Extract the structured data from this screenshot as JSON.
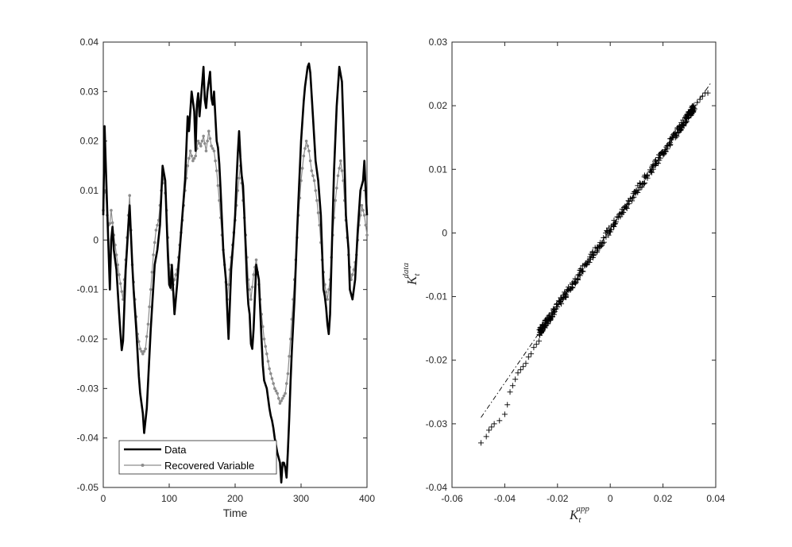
{
  "chart_data": [
    {
      "type": "line",
      "xlabel": "Time",
      "ylabel": "",
      "xlim": [
        0,
        400
      ],
      "ylim": [
        -0.05,
        0.04
      ],
      "x_ticks": [
        "0",
        "100",
        "200",
        "300",
        "400"
      ],
      "y_ticks": [
        "-0.05",
        "-0.04",
        "-0.03",
        "-0.02",
        "-0.01",
        "0",
        "0.01",
        "0.02",
        "0.03",
        "0.04"
      ],
      "grid": false,
      "legend_position": "bottom-left",
      "series": [
        {
          "name": "Data",
          "color": "#000000",
          "style": "thick solid line",
          "keypoints": [
            [
              0,
              0.005
            ],
            [
              2,
              0.023
            ],
            [
              5,
              0.01
            ],
            [
              8,
              -0.002
            ],
            [
              10,
              -0.01
            ],
            [
              13,
              0.005
            ],
            [
              16,
              -0.002
            ],
            [
              20,
              -0.006
            ],
            [
              25,
              -0.017
            ],
            [
              29,
              -0.024
            ],
            [
              34,
              -0.006
            ],
            [
              40,
              0.007
            ],
            [
              45,
              -0.008
            ],
            [
              50,
              -0.018
            ],
            [
              55,
              -0.03
            ],
            [
              60,
              -0.035
            ],
            [
              62,
              -0.039
            ],
            [
              66,
              -0.034
            ],
            [
              72,
              -0.018
            ],
            [
              78,
              -0.005
            ],
            [
              82,
              -0.002
            ],
            [
              86,
              0.003
            ],
            [
              90,
              0.015
            ],
            [
              94,
              0.012
            ],
            [
              98,
              -0.003
            ],
            [
              101,
              -0.012
            ],
            [
              104,
              -0.005
            ],
            [
              108,
              -0.015
            ],
            [
              112,
              -0.009
            ],
            [
              116,
              -0.002
            ],
            [
              120,
              0.005
            ],
            [
              124,
              0.012
            ],
            [
              128,
              0.025
            ],
            [
              130,
              0.022
            ],
            [
              134,
              0.03
            ],
            [
              138,
              0.026
            ],
            [
              140,
              0.018
            ],
            [
              143,
              0.032
            ],
            [
              146,
              0.025
            ],
            [
              149,
              0.03
            ],
            [
              152,
              0.035
            ],
            [
              155,
              0.025
            ],
            [
              158,
              0.03
            ],
            [
              162,
              0.034
            ],
            [
              165,
              0.026
            ],
            [
              168,
              0.03
            ],
            [
              172,
              0.02
            ],
            [
              175,
              0.018
            ],
            [
              178,
              0.01
            ],
            [
              182,
              -0.002
            ],
            [
              186,
              -0.008
            ],
            [
              190,
              -0.02
            ],
            [
              194,
              -0.006
            ],
            [
              198,
              0.001
            ],
            [
              200,
              0.005
            ],
            [
              203,
              0.015
            ],
            [
              206,
              0.022
            ],
            [
              209,
              0.014
            ],
            [
              212,
              0.011
            ],
            [
              215,
              0.002
            ],
            [
              219,
              -0.012
            ],
            [
              222,
              -0.015
            ],
            [
              225,
              -0.024
            ],
            [
              228,
              -0.018
            ],
            [
              232,
              -0.005
            ],
            [
              236,
              -0.008
            ],
            [
              240,
              -0.02
            ],
            [
              243,
              -0.028
            ],
            [
              248,
              -0.03
            ],
            [
              253,
              -0.035
            ],
            [
              257,
              -0.037
            ],
            [
              260,
              -0.04
            ],
            [
              264,
              -0.043
            ],
            [
              268,
              -0.045
            ],
            [
              270,
              -0.049
            ],
            [
              272,
              -0.045
            ],
            [
              275,
              -0.045
            ],
            [
              278,
              -0.048
            ],
            [
              281,
              -0.04
            ],
            [
              285,
              -0.025
            ],
            [
              290,
              -0.012
            ],
            [
              295,
              0.005
            ],
            [
              300,
              0.02
            ],
            [
              305,
              0.03
            ],
            [
              310,
              0.035
            ],
            [
              313,
              0.036
            ],
            [
              318,
              0.025
            ],
            [
              322,
              0.016
            ],
            [
              326,
              0.012
            ],
            [
              330,
              0.005
            ],
            [
              334,
              -0.01
            ],
            [
              337,
              -0.012
            ],
            [
              340,
              -0.017
            ],
            [
              343,
              -0.02
            ],
            [
              346,
              -0.005
            ],
            [
              350,
              0.014
            ],
            [
              354,
              0.027
            ],
            [
              358,
              0.035
            ],
            [
              362,
              0.032
            ],
            [
              365,
              0.02
            ],
            [
              368,
              0.005
            ],
            [
              372,
              -0.002
            ],
            [
              374,
              -0.01
            ],
            [
              378,
              -0.012
            ],
            [
              382,
              -0.008
            ],
            [
              386,
              0.002
            ],
            [
              390,
              0.01
            ],
            [
              394,
              0.012
            ],
            [
              396,
              0.016
            ],
            [
              398,
              0.01
            ],
            [
              400,
              0.005
            ]
          ]
        },
        {
          "name": "Recovered Variable",
          "color": "#8c8c8c",
          "style": "thin line with dot markers",
          "keypoints": [
            [
              0,
              0.006
            ],
            [
              3,
              0.012
            ],
            [
              6,
              0.005
            ],
            [
              9,
              0.002
            ],
            [
              12,
              0.006
            ],
            [
              16,
              0.001
            ],
            [
              20,
              -0.003
            ],
            [
              25,
              -0.008
            ],
            [
              30,
              -0.012
            ],
            [
              34,
              -0.004
            ],
            [
              38,
              0.005
            ],
            [
              40,
              0.009
            ],
            [
              44,
              -0.005
            ],
            [
              48,
              -0.012
            ],
            [
              52,
              -0.019
            ],
            [
              56,
              -0.022
            ],
            [
              60,
              -0.023
            ],
            [
              64,
              -0.022
            ],
            [
              68,
              -0.017
            ],
            [
              72,
              -0.01
            ],
            [
              76,
              -0.003
            ],
            [
              80,
              0.002
            ],
            [
              84,
              0.004
            ],
            [
              88,
              0.01
            ],
            [
              92,
              0.013
            ],
            [
              96,
              0.006
            ],
            [
              100,
              -0.005
            ],
            [
              104,
              -0.01
            ],
            [
              108,
              -0.008
            ],
            [
              112,
              -0.006
            ],
            [
              116,
              -0.001
            ],
            [
              120,
              0.004
            ],
            [
              124,
              0.01
            ],
            [
              128,
              0.015
            ],
            [
              132,
              0.018
            ],
            [
              136,
              0.016
            ],
            [
              140,
              0.017
            ],
            [
              144,
              0.02
            ],
            [
              148,
              0.019
            ],
            [
              152,
              0.021
            ],
            [
              156,
              0.018
            ],
            [
              160,
              0.022
            ],
            [
              164,
              0.019
            ],
            [
              168,
              0.018
            ],
            [
              172,
              0.014
            ],
            [
              176,
              0.008
            ],
            [
              180,
              0.001
            ],
            [
              184,
              -0.005
            ],
            [
              188,
              -0.012
            ],
            [
              192,
              -0.006
            ],
            [
              196,
              -0.001
            ],
            [
              200,
              0.004
            ],
            [
              204,
              0.01
            ],
            [
              208,
              0.015
            ],
            [
              212,
              0.008
            ],
            [
              216,
              0.001
            ],
            [
              220,
              -0.008
            ],
            [
              224,
              -0.012
            ],
            [
              228,
              -0.007
            ],
            [
              232,
              -0.004
            ],
            [
              236,
              -0.009
            ],
            [
              240,
              -0.015
            ],
            [
              244,
              -0.02
            ],
            [
              248,
              -0.023
            ],
            [
              252,
              -0.026
            ],
            [
              256,
              -0.028
            ],
            [
              260,
              -0.03
            ],
            [
              264,
              -0.031
            ],
            [
              268,
              -0.033
            ],
            [
              272,
              -0.032
            ],
            [
              276,
              -0.031
            ],
            [
              280,
              -0.027
            ],
            [
              284,
              -0.02
            ],
            [
              288,
              -0.012
            ],
            [
              292,
              -0.004
            ],
            [
              296,
              0.005
            ],
            [
              300,
              0.012
            ],
            [
              304,
              0.017
            ],
            [
              308,
              0.02
            ],
            [
              312,
              0.018
            ],
            [
              316,
              0.014
            ],
            [
              320,
              0.012
            ],
            [
              324,
              0.008
            ],
            [
              328,
              0.003
            ],
            [
              332,
              -0.004
            ],
            [
              336,
              -0.009
            ],
            [
              340,
              -0.012
            ],
            [
              344,
              -0.008
            ],
            [
              348,
              0.001
            ],
            [
              352,
              0.008
            ],
            [
              356,
              0.013
            ],
            [
              360,
              0.016
            ],
            [
              364,
              0.012
            ],
            [
              368,
              0.004
            ],
            [
              372,
              -0.003
            ],
            [
              376,
              -0.008
            ],
            [
              380,
              -0.006
            ],
            [
              384,
              -0.003
            ],
            [
              388,
              0.003
            ],
            [
              392,
              0.007
            ],
            [
              396,
              0.005
            ],
            [
              400,
              0.001
            ]
          ]
        }
      ]
    },
    {
      "type": "scatter",
      "xlabel_base": "K",
      "xlabel_sub": "t",
      "xlabel_sup": "app",
      "ylabel_base": "K",
      "ylabel_sub": "t",
      "ylabel_sup": "data",
      "xlim": [
        -0.06,
        0.04
      ],
      "ylim": [
        -0.04,
        0.03
      ],
      "x_ticks": [
        "-0.06",
        "-0.04",
        "-0.02",
        "0",
        "0.02",
        "0.04"
      ],
      "y_ticks": [
        "-0.04",
        "-0.03",
        "-0.02",
        "-0.01",
        "0",
        "0.01",
        "0.02",
        "0.03"
      ],
      "grid": false,
      "marker": "+",
      "color": "#000000",
      "reference_line": {
        "style": "dash-dot",
        "from": [
          -0.049,
          -0.029
        ],
        "to": [
          0.038,
          0.0235
        ]
      },
      "outlier_points": [
        [
          -0.049,
          -0.033
        ],
        [
          -0.047,
          -0.032
        ],
        [
          -0.046,
          -0.031
        ],
        [
          -0.045,
          -0.0305
        ],
        [
          -0.044,
          -0.03
        ],
        [
          -0.042,
          -0.0295
        ],
        [
          -0.04,
          -0.0285
        ],
        [
          -0.039,
          -0.027
        ],
        [
          -0.038,
          -0.025
        ],
        [
          -0.037,
          -0.024
        ],
        [
          -0.036,
          -0.023
        ],
        [
          -0.035,
          -0.022
        ],
        [
          -0.034,
          -0.0215
        ],
        [
          -0.033,
          -0.021
        ],
        [
          -0.032,
          -0.0205
        ],
        [
          -0.031,
          -0.0195
        ],
        [
          -0.03,
          -0.019
        ],
        [
          -0.029,
          -0.018
        ],
        [
          -0.028,
          -0.0175
        ],
        [
          -0.027,
          -0.017
        ],
        [
          0.032,
          0.0195
        ],
        [
          0.033,
          0.0205
        ],
        [
          0.034,
          0.021
        ],
        [
          0.035,
          0.0215
        ],
        [
          0.036,
          0.022
        ],
        [
          0.037,
          0.022
        ]
      ],
      "point_count": 400,
      "core_x_range": [
        -0.027,
        0.032
      ]
    }
  ]
}
